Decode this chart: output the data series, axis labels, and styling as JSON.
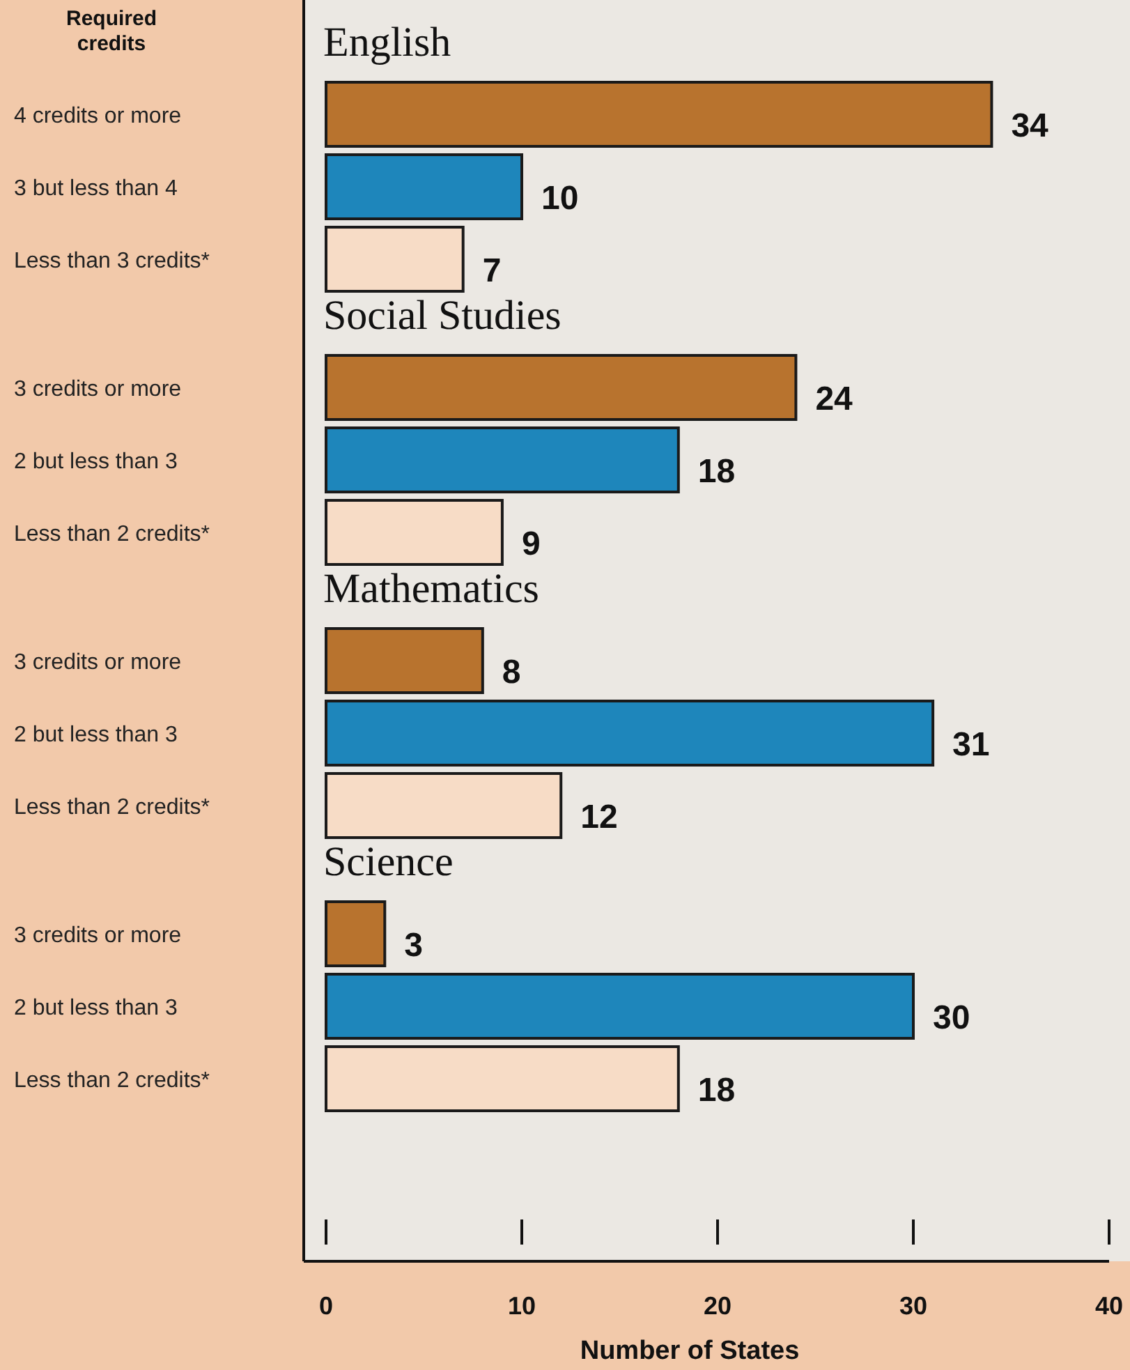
{
  "chart_data": [
    {
      "type": "bar",
      "orientation": "horizontal",
      "title": "English",
      "ylabel": "Required credits",
      "categories": [
        "4 credits or more",
        "3 but less than 4",
        "Less than 3 credits*"
      ],
      "values": [
        34,
        10,
        7
      ],
      "colors": [
        "#b8732e",
        "#1e86bb",
        "#f7dcc6"
      ],
      "data_labels": true,
      "xlim": [
        0,
        40
      ],
      "xticks": [
        0,
        10,
        20,
        30,
        40
      ],
      "tick_labels": "y"
    },
    {
      "type": "bar",
      "orientation": "horizontal",
      "title": "Social Studies",
      "categories": [
        "3 credits or more",
        "2 but less than 3",
        "Less than 2 credits*"
      ],
      "values": [
        24,
        18,
        9
      ],
      "colors": [
        "#b8732e",
        "#1e86bb",
        "#f7dcc6"
      ],
      "data_labels": true,
      "xlim": [
        0,
        40
      ],
      "xticks": [
        0,
        10,
        20,
        30,
        40
      ],
      "tick_labels": "y"
    },
    {
      "type": "bar",
      "orientation": "horizontal",
      "title": "Mathematics",
      "categories": [
        "3 credits or more",
        "2 but less than 3",
        "Less than 2 credits*"
      ],
      "values": [
        8,
        31,
        12
      ],
      "colors": [
        "#b8732e",
        "#1e86bb",
        "#f7dcc6"
      ],
      "data_labels": true,
      "xlim": [
        0,
        40
      ],
      "xticks": [
        0,
        10,
        20,
        30,
        40
      ],
      "tick_labels": "y"
    },
    {
      "type": "bar",
      "orientation": "horizontal",
      "title": "Science",
      "xlabel": "Number of States",
      "categories": [
        "3 credits or more",
        "2 but less than 3",
        "Less than 2 credits*"
      ],
      "values": [
        3,
        30,
        18
      ],
      "colors": [
        "#b8732e",
        "#1e86bb",
        "#f7dcc6"
      ],
      "data_labels": true,
      "xlim": [
        0,
        40
      ],
      "xticks": [
        0,
        10,
        20,
        30,
        40
      ]
    }
  ]
}
